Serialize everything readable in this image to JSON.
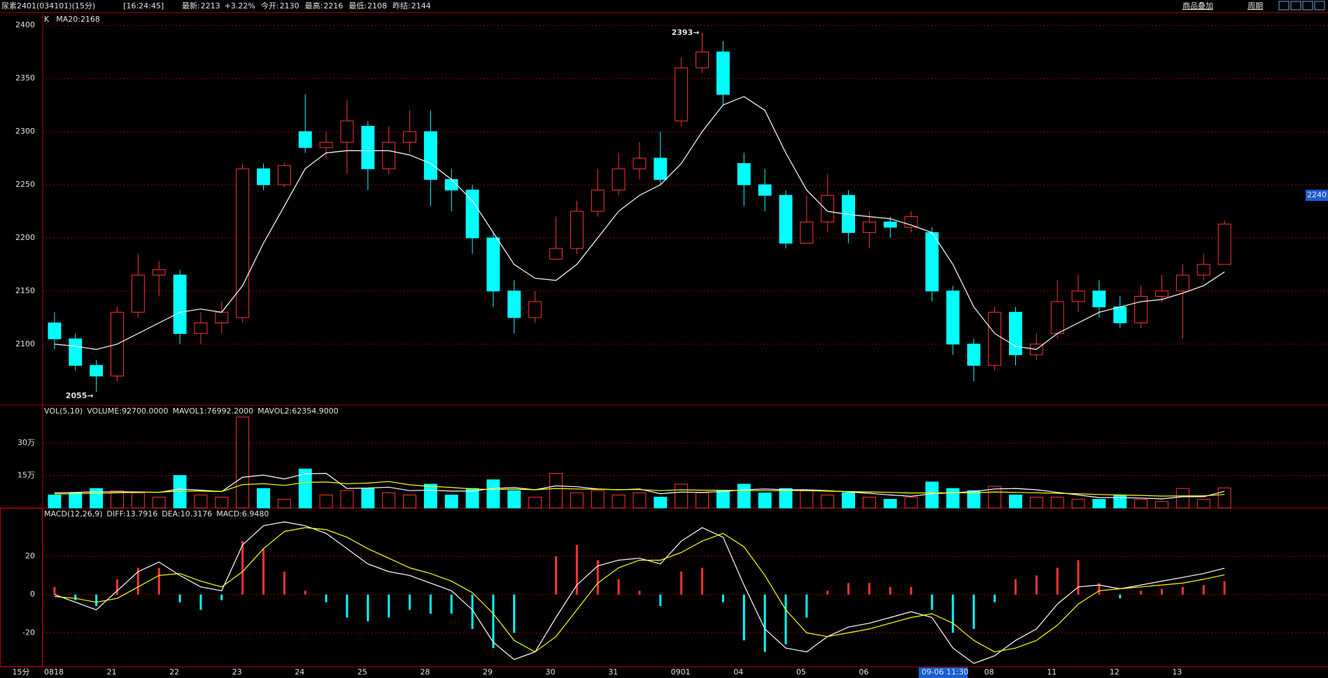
{
  "header": {
    "title": "尿素2401(034101)(15分)",
    "time": "[16:24:45]",
    "quotes": [
      {
        "label": "最新:",
        "value": 2213,
        "change": "+3.22%",
        "color": "#ff3232"
      },
      {
        "label": "今开:",
        "value": 2130,
        "color": "#00e600"
      },
      {
        "label": "最高:",
        "value": 2216,
        "color": "#ff3232"
      },
      {
        "label": "最低:",
        "value": 2108,
        "color": "#00e600"
      },
      {
        "label": "昨结:",
        "value": 2144,
        "color": "#ffffff"
      }
    ],
    "links": [
      "商品叠加",
      "周期"
    ]
  },
  "interval_label": "15分",
  "up_color": "#ff3232",
  "down_color": "#00ffff",
  "grid": true,
  "chart_data": [
    {
      "type": "candlestick",
      "indicator": "K",
      "categories": [
        "0818",
        null,
        null,
        "21",
        null,
        null,
        "22",
        null,
        null,
        "23",
        null,
        null,
        "24",
        null,
        null,
        "25",
        null,
        null,
        "28",
        null,
        null,
        "29",
        null,
        null,
        "30",
        null,
        null,
        "31",
        null,
        null,
        "0901",
        null,
        null,
        "04",
        null,
        null,
        "05",
        null,
        null,
        "06",
        null,
        null,
        "09-06 11:30",
        null,
        null,
        "08",
        null,
        null,
        "11",
        null,
        null,
        "12",
        null,
        null,
        "13",
        null,
        null
      ],
      "open": [
        2120,
        2105,
        2080,
        2070,
        2130,
        2165,
        2165,
        2110,
        2120,
        2125,
        2265,
        2250,
        2300,
        2285,
        2290,
        2305,
        2265,
        2290,
        2300,
        2255,
        2245,
        2200,
        2150,
        2125,
        2180,
        2190,
        2225,
        2245,
        2265,
        2275,
        2310,
        2360,
        2375,
        2270,
        2250,
        2240,
        2195,
        2215,
        2240,
        2205,
        2215,
        2210,
        2205,
        2150,
        2100,
        2080,
        2130,
        2090,
        2110,
        2140,
        2150,
        2135,
        2120,
        2145,
        2150,
        2165,
        2175
      ],
      "high": [
        2130,
        2110,
        2085,
        2135,
        2185,
        2178,
        2170,
        2130,
        2140,
        2270,
        2270,
        2270,
        2335,
        2300,
        2330,
        2310,
        2305,
        2320,
        2320,
        2265,
        2250,
        2205,
        2160,
        2150,
        2220,
        2235,
        2265,
        2280,
        2290,
        2300,
        2370,
        2393,
        2385,
        2280,
        2265,
        2245,
        2240,
        2260,
        2245,
        2225,
        2220,
        2225,
        2210,
        2155,
        2105,
        2135,
        2135,
        2110,
        2160,
        2165,
        2160,
        2145,
        2155,
        2165,
        2175,
        2185,
        2216
      ],
      "low": [
        2095,
        2075,
        2055,
        2065,
        2125,
        2145,
        2100,
        2100,
        2110,
        2120,
        2245,
        2248,
        2280,
        2275,
        2260,
        2245,
        2260,
        2280,
        2230,
        2225,
        2185,
        2135,
        2110,
        2120,
        2180,
        2185,
        2220,
        2240,
        2255,
        2250,
        2305,
        2355,
        2325,
        2230,
        2225,
        2190,
        2195,
        2205,
        2195,
        2190,
        2200,
        2205,
        2140,
        2090,
        2065,
        2075,
        2080,
        2085,
        2105,
        2130,
        2125,
        2115,
        2115,
        2140,
        2105,
        2160,
        2175
      ],
      "close": [
        2105,
        2080,
        2070,
        2130,
        2165,
        2170,
        2110,
        2120,
        2130,
        2265,
        2250,
        2268,
        2285,
        2290,
        2310,
        2265,
        2290,
        2300,
        2255,
        2245,
        2200,
        2150,
        2125,
        2140,
        2190,
        2225,
        2245,
        2265,
        2275,
        2255,
        2360,
        2375,
        2335,
        2250,
        2240,
        2195,
        2215,
        2240,
        2205,
        2215,
        2210,
        2220,
        2150,
        2100,
        2080,
        2130,
        2090,
        2100,
        2140,
        2150,
        2135,
        2120,
        2145,
        2150,
        2165,
        2175,
        2213
      ],
      "series": [
        {
          "name": "MA20:2168",
          "color": "#ffffff",
          "values": [
            2100,
            2098,
            2095,
            2100,
            2110,
            2120,
            2130,
            2133,
            2130,
            2155,
            2195,
            2230,
            2265,
            2280,
            2282,
            2282,
            2282,
            2278,
            2270,
            2255,
            2235,
            2205,
            2175,
            2162,
            2160,
            2175,
            2200,
            2225,
            2240,
            2250,
            2270,
            2300,
            2325,
            2333,
            2320,
            2280,
            2245,
            2225,
            2222,
            2220,
            2218,
            2212,
            2205,
            2175,
            2135,
            2110,
            2098,
            2095,
            2110,
            2120,
            2130,
            2135,
            2140,
            2142,
            2148,
            2155,
            2168
          ]
        }
      ],
      "high_label": "2393→",
      "low_label": "2055→",
      "cursor": {
        "x": "09-06 11:30",
        "y": 2240
      },
      "ylim": [
        2042.6,
        2412
      ],
      "yticks": [
        2100,
        2150,
        2200,
        2250,
        2300,
        2350,
        2400
      ]
    },
    {
      "type": "volume",
      "title": "VOL(5,10)",
      "value_name": "VOLUME:92700.0000",
      "values": [
        60000,
        70000,
        90000,
        80000,
        70000,
        50000,
        150000,
        60000,
        50000,
        420000,
        90000,
        40000,
        180000,
        60000,
        80000,
        90000,
        70000,
        60000,
        110000,
        60000,
        90000,
        130000,
        80000,
        50000,
        160000,
        70000,
        80000,
        60000,
        70000,
        50000,
        110000,
        70000,
        80000,
        110000,
        70000,
        90000,
        80000,
        60000,
        70000,
        50000,
        40000,
        50000,
        120000,
        90000,
        80000,
        100000,
        60000,
        50000,
        50000,
        40000,
        40000,
        60000,
        40000,
        30000,
        90000,
        40000,
        92700
      ],
      "series": [
        {
          "name": "MAVOL1:76992.2000",
          "color": "#ffffff",
          "values": [
            70000,
            72000,
            75000,
            75000,
            74000,
            72000,
            88000,
            82000,
            76000,
            142000,
            152000,
            134000,
            158000,
            160000,
            90000,
            92000,
            96000,
            80000,
            82000,
            78000,
            78000,
            90000,
            94000,
            84000,
            102000,
            98000,
            88000,
            84000,
            88000,
            66000,
            74000,
            72000,
            76000,
            84000,
            88000,
            84000,
            84000,
            80000,
            74000,
            68000,
            60000,
            54000,
            66000,
            70000,
            76000,
            88000,
            90000,
            84000,
            72000,
            60000,
            48000,
            48000,
            46000,
            42000,
            52000,
            52000,
            76992.2
          ]
        },
        {
          "name": "MAVOL2:62354.9000",
          "color": "#ffff00",
          "values": [
            65000,
            66000,
            68000,
            70000,
            72000,
            73000,
            78000,
            78000,
            76000,
            108000,
            112000,
            104000,
            118000,
            120000,
            112000,
            115000,
            122000,
            107000,
            100000,
            95000,
            88000,
            85000,
            87000,
            84000,
            90000,
            88000,
            86000,
            85000,
            85000,
            80000,
            84000,
            82000,
            82000,
            80000,
            80000,
            80000,
            80000,
            78000,
            76000,
            74000,
            72000,
            69000,
            70000,
            70000,
            70000,
            74000,
            72000,
            70000,
            68000,
            66000,
            62000,
            60000,
            58000,
            55000,
            56000,
            56000,
            62354.9
          ]
        }
      ],
      "ylim": [
        0,
        475000
      ],
      "yticks": [
        {
          "value": 150000,
          "label": "15万"
        },
        {
          "value": 300000,
          "label": "30万"
        }
      ]
    },
    {
      "type": "macd",
      "title": "MACD(12,26,9)",
      "value_name": "MACD:6.9480",
      "values": [
        4,
        -3,
        -6,
        8,
        14,
        14,
        -4,
        -8,
        -3,
        28,
        24,
        12,
        2,
        -4,
        -12,
        -14,
        -12,
        -8,
        -10,
        -10,
        -18,
        -28,
        -20,
        0,
        20,
        26,
        18,
        8,
        2,
        -6,
        12,
        14,
        -4,
        -24,
        -30,
        -26,
        -12,
        2,
        6,
        6,
        4,
        4,
        -8,
        -20,
        -18,
        -4,
        8,
        10,
        14,
        18,
        6,
        -2,
        2,
        3,
        4,
        5,
        6.948
      ],
      "series": [
        {
          "name": "DIFF:13.7916",
          "color": "#ffffff",
          "values": [
            0,
            -4,
            -8,
            2,
            12,
            17,
            10,
            4,
            2,
            26,
            36,
            38,
            36,
            32,
            24,
            16,
            12,
            10,
            6,
            2,
            -8,
            -25,
            -34,
            -30,
            -12,
            5,
            15,
            18,
            19,
            16,
            28,
            35,
            30,
            5,
            -18,
            -28,
            -30,
            -22,
            -17,
            -15,
            -12,
            -9,
            -12,
            -28,
            -36,
            -32,
            -24,
            -18,
            -5,
            4,
            5,
            3,
            5,
            7,
            9,
            11,
            13.7916
          ]
        },
        {
          "name": "DEA:10.3176",
          "color": "#ffff00",
          "values": [
            -1,
            -2,
            -4,
            -2,
            4,
            10,
            11,
            7,
            4,
            12,
            24,
            33,
            35,
            34,
            30,
            24,
            19,
            14,
            11,
            7,
            1,
            -10,
            -24,
            -30,
            -22,
            -8,
            6,
            14,
            18,
            18,
            22,
            28,
            32,
            25,
            10,
            -8,
            -20,
            -22,
            -20,
            -18,
            -15,
            -12,
            -10,
            -15,
            -24,
            -30,
            -28,
            -24,
            -16,
            -5,
            2,
            3,
            4,
            5,
            6,
            8,
            10.3176
          ]
        }
      ],
      "ylim": [
        -37.8,
        45.3
      ],
      "yticks": [
        -20,
        0,
        20
      ]
    }
  ]
}
